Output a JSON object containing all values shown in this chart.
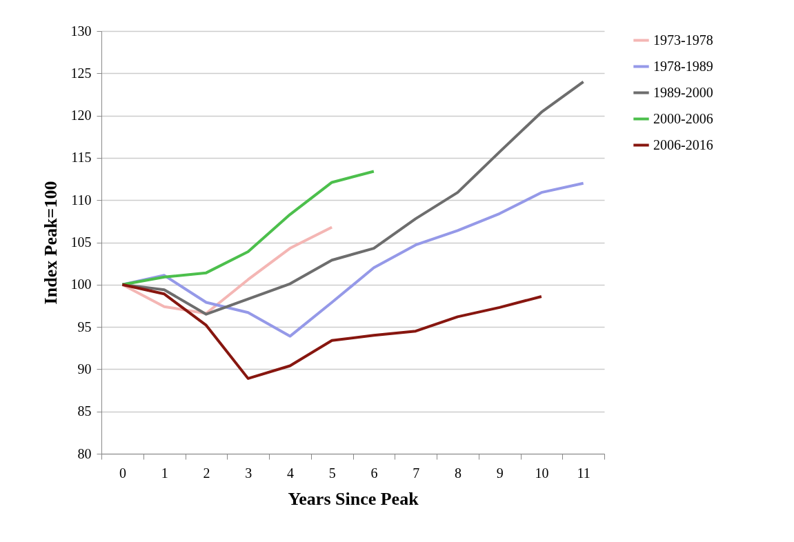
{
  "chart_data": {
    "type": "line",
    "xlabel": "Years Since Peak",
    "ylabel": "Index Peak=100",
    "categories": [
      "0",
      "1",
      "2",
      "3",
      "4",
      "5",
      "6",
      "7",
      "8",
      "9",
      "10",
      "11"
    ],
    "ylim": [
      80,
      130
    ],
    "yticks": [
      80,
      85,
      90,
      95,
      100,
      105,
      110,
      115,
      120,
      125,
      130
    ],
    "grid": "y",
    "legend": "right",
    "marker": "none",
    "line_style": "solid",
    "series": [
      {
        "name": "1973-1978",
        "color": "#f4b6b4",
        "values": [
          100,
          97.4,
          96.6,
          100.6,
          104.3,
          106.8,
          null,
          null,
          null,
          null,
          null,
          null
        ]
      },
      {
        "name": "1978-1989",
        "color": "#9599e8",
        "values": [
          100,
          101.1,
          97.9,
          96.7,
          93.9,
          97.9,
          102.0,
          104.7,
          106.4,
          108.4,
          110.9,
          112.0
        ]
      },
      {
        "name": "1989-2000",
        "color": "#6d6d6d",
        "values": [
          100,
          99.4,
          96.5,
          98.3,
          100.1,
          102.9,
          104.3,
          107.8,
          110.9,
          115.7,
          120.4,
          124.0
        ]
      },
      {
        "name": "2000-2006",
        "color": "#4cbf4c",
        "values": [
          100,
          100.9,
          101.4,
          103.9,
          108.3,
          112.1,
          113.4,
          null,
          null,
          null,
          null,
          null
        ]
      },
      {
        "name": "2006-2016",
        "color": "#87160f",
        "values": [
          100,
          98.9,
          95.2,
          88.9,
          90.4,
          93.4,
          94.0,
          94.5,
          96.2,
          97.3,
          98.6,
          null
        ]
      }
    ]
  }
}
